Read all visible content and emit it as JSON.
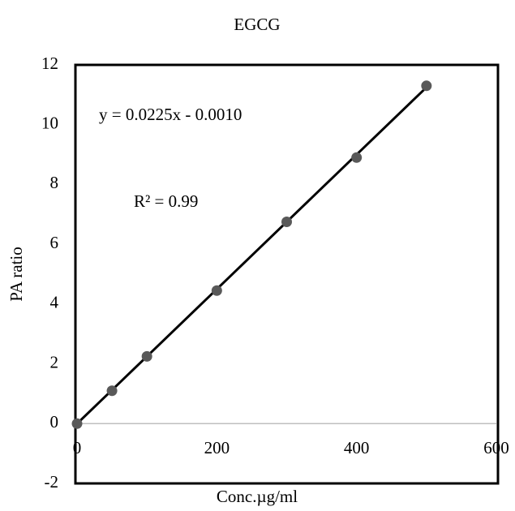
{
  "chart_data": {
    "type": "scatter",
    "title": "EGCG",
    "x_label": "Conc.µg/ml",
    "y_label": "PA ratio",
    "x": [
      0,
      50,
      100,
      200,
      300,
      400,
      500
    ],
    "series": [
      {
        "color": "#595959",
        "values": [
          0,
          1.1,
          2.25,
          4.45,
          6.75,
          8.9,
          11.3
        ]
      }
    ],
    "trendline": {
      "slope": 0.0225,
      "intercept": -0.001,
      "color": "#000000"
    },
    "annotations": [
      "y = 0.0225x - 0.0010",
      "R² = 0.99"
    ],
    "xlim": [
      0,
      600
    ],
    "xticks": [
      0,
      200,
      400,
      600
    ],
    "ylim": [
      -2,
      12
    ],
    "yticks": [
      -2,
      0,
      2,
      4,
      6,
      8,
      10,
      12
    ]
  }
}
